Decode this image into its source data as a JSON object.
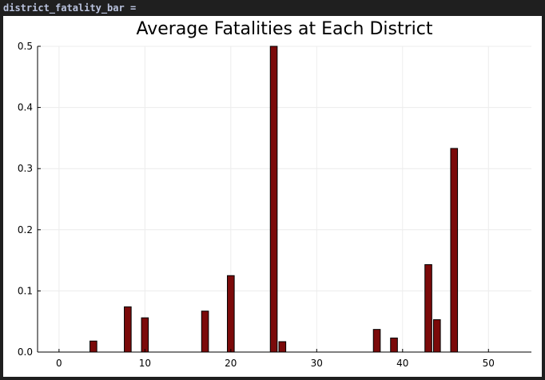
{
  "cell": {
    "label": "district_fatality_bar ="
  },
  "chart_data": {
    "type": "bar",
    "title": "Average Fatalities at Each District",
    "xlabel": "",
    "ylabel": "",
    "xlim": [
      -2.5,
      55
    ],
    "ylim": [
      0,
      0.5
    ],
    "xticks": [
      0,
      10,
      20,
      30,
      40,
      50
    ],
    "yticks": [
      0.0,
      0.1,
      0.2,
      0.3,
      0.4,
      0.5
    ],
    "ytick_labels": [
      "0.0",
      "0.1",
      "0.2",
      "0.3",
      "0.4",
      "0.5"
    ],
    "grid": true,
    "legend": "none",
    "bar_color": "#7b0a0a",
    "x": [
      0,
      1,
      2,
      3,
      4,
      5,
      6,
      7,
      8,
      9,
      10,
      11,
      12,
      13,
      14,
      15,
      16,
      17,
      18,
      19,
      20,
      21,
      22,
      23,
      24,
      25,
      26,
      27,
      28,
      29,
      30,
      31,
      32,
      33,
      34,
      35,
      36,
      37,
      38,
      39,
      40,
      41,
      42,
      43,
      44,
      45,
      46,
      47,
      48,
      49,
      50,
      51
    ],
    "values": [
      0,
      0,
      0,
      0,
      0.018,
      0,
      0,
      0,
      0.074,
      0,
      0.056,
      0,
      0,
      0,
      0,
      0,
      0,
      0.067,
      0,
      0,
      0.125,
      0,
      0,
      0,
      0,
      0.5,
      0.017,
      0,
      0,
      0,
      0,
      0,
      0,
      0,
      0,
      0,
      0,
      0.037,
      0,
      0.023,
      0,
      0,
      0,
      0.143,
      0.053,
      0,
      0.333,
      0,
      0,
      0,
      0,
      0
    ]
  }
}
